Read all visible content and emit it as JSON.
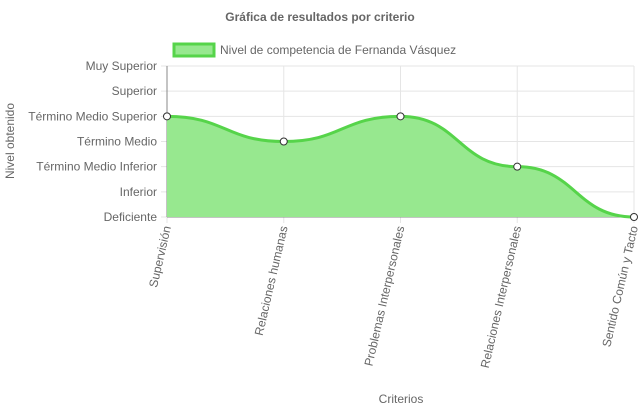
{
  "chart_data": {
    "type": "area",
    "title": "Gráfica de resultados por criterio",
    "xlabel": "Criterios",
    "ylabel": "Nivel obtenido",
    "categories": [
      "Supervisión",
      "Relaciones humanas",
      "Problemas Interpersonales",
      "Relaciones Interpersonales",
      "Sentido Común y Tacto"
    ],
    "y_levels": [
      "Deficiente",
      "Inferior",
      "Término Medio Inferior",
      "Término Medio",
      "Término Medio Superior",
      "Superior",
      "Muy Superior"
    ],
    "series": [
      {
        "name": "Nivel de competencia de Fernanda Vásquez",
        "values": [
          4,
          3,
          4,
          2,
          0
        ],
        "value_labels": [
          "Término Medio Superior",
          "Término Medio",
          "Término Medio Superior",
          "Término Medio Inferior",
          "Deficiente"
        ]
      }
    ],
    "ylim": [
      0,
      6
    ],
    "grid": true,
    "legend_position": "top",
    "colors": {
      "fill": "#97e88f",
      "line": "#56d44a",
      "grid": "#e5e5e5",
      "axis": "#888888",
      "text": "#666666"
    }
  }
}
